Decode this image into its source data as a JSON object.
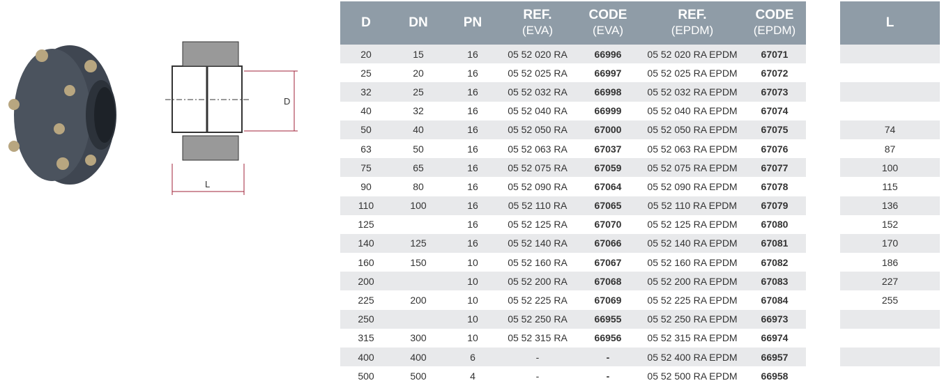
{
  "headers": {
    "d": "D",
    "dn": "DN",
    "pn": "PN",
    "ref_eva": "REF.",
    "ref_eva_sub": "(EVA)",
    "code_eva": "CODE",
    "code_eva_sub": "(EVA)",
    "ref_epdm": "REF.",
    "ref_epdm_sub": "(EPDM)",
    "code_epdm": "CODE",
    "code_epdm_sub": "(EPDM)",
    "l": "L"
  },
  "drawing": {
    "d_label": "D",
    "l_label": "L"
  },
  "rows": [
    [
      "20",
      "15",
      "16",
      "05 52 020 RA",
      "66996",
      "05 52 020 RA EPDM",
      "67071",
      ""
    ],
    [
      "25",
      "20",
      "16",
      "05 52 025 RA",
      "66997",
      "05 52 025 RA EPDM",
      "67072",
      ""
    ],
    [
      "32",
      "25",
      "16",
      "05 52 032 RA",
      "66998",
      "05 52 032 RA EPDM",
      "67073",
      ""
    ],
    [
      "40",
      "32",
      "16",
      "05 52 040 RA",
      "66999",
      "05 52 040 RA EPDM",
      "67074",
      ""
    ],
    [
      "50",
      "40",
      "16",
      "05 52 050 RA",
      "67000",
      "05 52 050 RA EPDM",
      "67075",
      "74"
    ],
    [
      "63",
      "50",
      "16",
      "05 52 063 RA",
      "67037",
      "05 52 063 RA EPDM",
      "67076",
      "87"
    ],
    [
      "75",
      "65",
      "16",
      "05 52 075 RA",
      "67059",
      "05 52 075 RA EPDM",
      "67077",
      "100"
    ],
    [
      "90",
      "80",
      "16",
      "05 52 090 RA",
      "67064",
      "05 52 090 RA EPDM",
      "67078",
      "115"
    ],
    [
      "110",
      "100",
      "16",
      "05 52 110 RA",
      "67065",
      "05 52 110 RA EPDM",
      "67079",
      "136"
    ],
    [
      "125",
      "",
      "16",
      "05 52 125 RA",
      "67070",
      "05 52 125 RA EPDM",
      "67080",
      "152"
    ],
    [
      "140",
      "125",
      "16",
      "05 52 140 RA",
      "67066",
      "05 52 140 RA EPDM",
      "67081",
      "170"
    ],
    [
      "160",
      "150",
      "10",
      "05 52 160 RA",
      "67067",
      "05 52 160 RA EPDM",
      "67082",
      "186"
    ],
    [
      "200",
      "",
      "10",
      "05 52 200 RA",
      "67068",
      "05 52 200 RA EPDM",
      "67083",
      "227"
    ],
    [
      "225",
      "200",
      "10",
      "05 52 225 RA",
      "67069",
      "05 52 225 RA EPDM",
      "67084",
      "255"
    ],
    [
      "250",
      "",
      "10",
      "05 52 250 RA",
      "66955",
      "05 52 250 RA EPDM",
      "66973",
      ""
    ],
    [
      "315",
      "300",
      "10",
      "05 52 315 RA",
      "66956",
      "05 52 315 RA EPDM",
      "66974",
      ""
    ],
    [
      "400",
      "400",
      "6",
      "-",
      "-",
      "05 52 400 RA EPDM",
      "66957",
      ""
    ],
    [
      "500",
      "500",
      "4",
      "-",
      "-",
      "05 52 500 RA EPDM",
      "66958",
      ""
    ]
  ]
}
